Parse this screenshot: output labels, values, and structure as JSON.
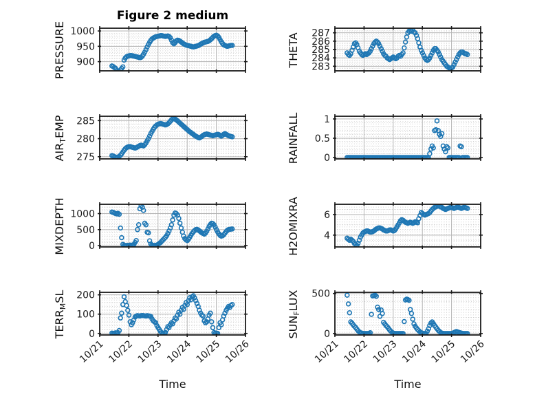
{
  "figure": {
    "title": "Figure 2 medium",
    "xlabel": "Time",
    "background": "#ffffff"
  },
  "chart_data": {
    "type": "scatter",
    "marker": "open-circle",
    "marker_color": "#1f77b4",
    "spine_color": "#1a1a1a",
    "grid": {
      "major_color": "#b3b3b3",
      "minor_color": "#c9c9c9",
      "minor_style": "dotted",
      "grid_on": true
    },
    "x_axis": {
      "label": "Time",
      "tick_labels": [
        "10/21",
        "10/22",
        "10/23",
        "10/24",
        "10/25",
        "10/26"
      ],
      "tick_values": [
        0,
        1,
        2,
        3,
        4,
        5
      ],
      "xlim": [
        0,
        5
      ],
      "minor_step": 0.0833333
    },
    "t0": 0.42,
    "dt": 0.0416667,
    "subplots": [
      {
        "key": "pressure",
        "row": 0,
        "col": 0,
        "ylabel": {
          "pre": "PRESSURE",
          "sub": "",
          "post": ""
        },
        "ylim": [
          870,
          1009
        ],
        "yticks": [
          900,
          950,
          1000
        ],
        "ytick_labels": [
          "900",
          "950",
          "1000"
        ],
        "minor_y": 10,
        "values": [
          886,
          884,
          881,
          878,
          871,
          866,
          868,
          873,
          878,
          883,
          905,
          912,
          916,
          918,
          919,
          920,
          920,
          919,
          918,
          917,
          916,
          915,
          914,
          913,
          914,
          918,
          924,
          931,
          939,
          948,
          956,
          963,
          969,
          974,
          977,
          979,
          981,
          982,
          983,
          984,
          985,
          985,
          984,
          983,
          982,
          983,
          984,
          982,
          978,
          970,
          962,
          958,
          962,
          968,
          970,
          969,
          967,
          964,
          961,
          958,
          956,
          954,
          953,
          952,
          951,
          950,
          949,
          948,
          949,
          950,
          951,
          952,
          954,
          957,
          959,
          961,
          963,
          964,
          965,
          966,
          968,
          971,
          975,
          979,
          983,
          985,
          986,
          984,
          979,
          972,
          965,
          959,
          955,
          953,
          951,
          950,
          951,
          952,
          953,
          953
        ]
      },
      {
        "key": "theta",
        "row": 0,
        "col": 1,
        "ylabel": {
          "pre": "THETA",
          "sub": "",
          "post": ""
        },
        "ylim": [
          282.45,
          287.55
        ],
        "yticks": [
          283,
          284,
          285,
          286,
          287
        ],
        "ytick_labels": [
          "283",
          "284",
          "285",
          "286",
          "287"
        ],
        "minor_y": 0.25,
        "values": [
          284.6,
          284.4,
          284.3,
          284.5,
          284.9,
          285.3,
          285.7,
          285.8,
          285.6,
          285.2,
          284.8,
          284.6,
          284.4,
          284.3,
          284.4,
          284.5,
          284.4,
          284.5,
          284.6,
          284.8,
          285.1,
          285.4,
          285.7,
          285.9,
          286.0,
          285.9,
          285.7,
          285.4,
          285.1,
          284.8,
          284.5,
          284.3,
          284.2,
          284.0,
          283.9,
          283.8,
          283.9,
          284.0,
          284.1,
          284.0,
          283.9,
          284.0,
          284.2,
          284.3,
          284.2,
          284.4,
          284.6,
          285.2,
          285.9,
          286.5,
          287.0,
          287.2,
          287.3,
          287.2,
          287.3,
          287.1,
          287.0,
          286.7,
          286.3,
          285.8,
          285.3,
          284.9,
          284.6,
          284.3,
          284.0,
          283.8,
          283.7,
          283.8,
          284.0,
          284.3,
          284.6,
          284.9,
          285.1,
          285.1,
          284.9,
          284.7,
          284.4,
          284.1,
          283.8,
          283.6,
          283.4,
          283.2,
          283.0,
          282.9,
          282.8,
          282.7,
          282.8,
          282.9,
          283.2,
          283.5,
          283.8,
          284.1,
          284.4,
          284.6,
          284.7,
          284.7,
          284.6,
          284.5,
          284.5,
          284.4
        ]
      },
      {
        "key": "air-temp",
        "row": 1,
        "col": 0,
        "ylabel": {
          "pre": "AIR",
          "sub": "T",
          "post": "EMP"
        },
        "ylim": [
          274.4,
          286.2
        ],
        "yticks": [
          275,
          280,
          285
        ],
        "ytick_labels": [
          "275",
          "280",
          "285"
        ],
        "minor_y": 1,
        "values": [
          275.3,
          275.2,
          275.0,
          274.9,
          274.8,
          274.9,
          275.1,
          275.4,
          275.8,
          276.3,
          276.8,
          277.2,
          277.5,
          277.7,
          277.8,
          277.8,
          277.7,
          277.6,
          277.5,
          277.4,
          277.5,
          277.7,
          277.9,
          278.1,
          278.2,
          278.1,
          278.0,
          278.3,
          278.8,
          279.4,
          280.0,
          280.7,
          281.4,
          282.0,
          282.6,
          283.1,
          283.5,
          283.8,
          284.0,
          284.1,
          284.2,
          284.1,
          284.0,
          283.9,
          283.8,
          283.9,
          284.1,
          284.4,
          284.8,
          285.2,
          285.5,
          285.6,
          285.4,
          285.2,
          284.9,
          284.6,
          284.3,
          284.0,
          283.7,
          283.4,
          283.1,
          282.8,
          282.5,
          282.2,
          281.9,
          281.7,
          281.4,
          281.2,
          280.9,
          280.7,
          280.5,
          280.3,
          280.2,
          280.4,
          280.6,
          280.9,
          281.1,
          281.2,
          281.3,
          281.2,
          281.1,
          281.0,
          280.9,
          280.8,
          280.9,
          281.0,
          281.1,
          281.2,
          281.1,
          280.9,
          280.7,
          280.9,
          281.2,
          281.4,
          281.2,
          281.0,
          280.8,
          280.7,
          280.6,
          280.5
        ]
      },
      {
        "key": "rainfall",
        "row": 1,
        "col": 1,
        "ylabel": {
          "pre": "RAINFALL",
          "sub": "",
          "post": ""
        },
        "ylim": [
          -0.035,
          1.07
        ],
        "yticks": [
          0,
          0.5,
          1
        ],
        "ytick_labels": [
          "0",
          "0.5",
          "1"
        ],
        "minor_y": 0.1,
        "values": [
          0,
          0,
          0,
          0,
          0,
          0,
          0,
          0,
          0,
          0,
          0,
          0,
          0,
          0,
          0,
          0,
          0,
          0,
          0,
          0,
          0,
          0,
          0,
          0,
          0,
          0,
          0,
          0,
          0,
          0,
          0,
          0,
          0,
          0,
          0,
          0,
          0,
          0,
          0,
          0,
          0,
          0,
          0,
          0,
          0,
          0,
          0,
          0,
          0,
          0,
          0,
          0,
          0,
          0,
          0,
          0,
          0,
          0,
          0,
          0,
          0,
          0,
          0,
          0,
          0,
          0,
          0,
          0,
          0.1,
          0.22,
          0.3,
          0.25,
          0.7,
          0.72,
          0.95,
          0.7,
          0.6,
          0.55,
          0.62,
          0.3,
          0.22,
          0.15,
          0.28,
          0.25,
          0,
          0,
          0,
          0,
          0,
          0,
          0,
          0,
          0,
          0.3,
          0.28,
          0,
          0,
          0,
          0,
          0
        ]
      },
      {
        "key": "mixdepth",
        "row": 2,
        "col": 0,
        "ylabel": {
          "pre": "MIXDEPTH",
          "sub": "",
          "post": ""
        },
        "ylim": [
          -40,
          1290
        ],
        "yticks": [
          0,
          500,
          1000
        ],
        "ytick_labels": [
          "0",
          "500",
          "1000"
        ],
        "minor_y": 100,
        "values": [
          1050,
          1040,
          1020,
          1000,
          990,
          1010,
          980,
          550,
          250,
          40,
          10,
          5,
          5,
          10,
          5,
          15,
          10,
          20,
          30,
          100,
          160,
          500,
          650,
          1150,
          1250,
          1200,
          1100,
          700,
          650,
          420,
          400,
          150,
          50,
          15,
          5,
          5,
          10,
          20,
          40,
          70,
          100,
          140,
          180,
          220,
          260,
          310,
          380,
          460,
          550,
          650,
          800,
          950,
          1020,
          1000,
          950,
          850,
          700,
          550,
          420,
          300,
          220,
          180,
          160,
          200,
          260,
          320,
          380,
          430,
          470,
          500,
          510,
          490,
          460,
          430,
          400,
          380,
          360,
          390,
          450,
          520,
          600,
          660,
          700,
          690,
          650,
          580,
          500,
          430,
          370,
          320,
          300,
          310,
          340,
          390,
          440,
          480,
          500,
          510,
          515,
          520
        ]
      },
      {
        "key": "h2omixra",
        "row": 2,
        "col": 1,
        "ylabel": {
          "pre": "H2OMIXRA",
          "sub": "",
          "post": ""
        },
        "ylim": [
          2.85,
          7.0
        ],
        "yticks": [
          4,
          6
        ],
        "ytick_labels": [
          "4",
          "6"
        ],
        "minor_y": 0.5,
        "values": [
          3.7,
          3.6,
          3.5,
          3.6,
          3.5,
          3.4,
          3.2,
          3.1,
          3.0,
          3.2,
          3.5,
          3.8,
          4.0,
          4.2,
          4.3,
          4.35,
          4.4,
          4.4,
          4.35,
          4.3,
          4.3,
          4.35,
          4.4,
          4.5,
          4.6,
          4.65,
          4.7,
          4.7,
          4.65,
          4.6,
          4.5,
          4.45,
          4.4,
          4.4,
          4.45,
          4.5,
          4.5,
          4.45,
          4.4,
          4.45,
          4.6,
          4.8,
          5.0,
          5.2,
          5.4,
          5.5,
          5.45,
          5.35,
          5.25,
          5.2,
          5.15,
          5.2,
          5.25,
          5.2,
          5.15,
          5.2,
          5.3,
          5.25,
          5.2,
          5.6,
          5.9,
          6.2,
          6.1,
          6.0,
          5.95,
          6.0,
          6.05,
          6.1,
          6.2,
          6.35,
          6.5,
          6.6,
          6.7,
          6.75,
          6.8,
          6.85,
          6.8,
          6.75,
          6.7,
          6.6,
          6.55,
          6.5,
          6.55,
          6.6,
          6.65,
          6.7,
          6.7,
          6.65,
          6.6,
          6.65,
          6.7,
          6.75,
          6.7,
          6.65,
          6.6,
          6.65,
          6.7,
          6.7,
          6.65,
          6.6
        ]
      },
      {
        "key": "terr-msl",
        "row": 3,
        "col": 0,
        "ylabel": {
          "pre": "TERR",
          "sub": "M",
          "post": "SL"
        },
        "ylim": [
          -8,
          213
        ],
        "yticks": [
          0,
          100,
          200
        ],
        "ytick_labels": [
          "0",
          "100",
          "200"
        ],
        "minor_y": 20,
        "values": [
          2,
          0,
          1,
          3,
          2,
          4,
          15,
          80,
          105,
          150,
          190,
          165,
          145,
          120,
          95,
          60,
          45,
          55,
          70,
          85,
          90,
          92,
          91,
          90,
          92,
          93,
          92,
          91,
          90,
          92,
          91,
          90,
          88,
          75,
          65,
          60,
          55,
          40,
          30,
          20,
          10,
          3,
          0,
          2,
          5,
          20,
          35,
          30,
          45,
          55,
          50,
          65,
          80,
          75,
          95,
          110,
          100,
          120,
          135,
          125,
          145,
          160,
          150,
          170,
          185,
          175,
          190,
          195,
          185,
          170,
          155,
          140,
          120,
          105,
          95,
          90,
          65,
          55,
          60,
          75,
          95,
          105,
          60,
          30,
          5,
          0,
          2,
          0,
          30,
          55,
          45,
          70,
          90,
          105,
          120,
          130,
          140,
          135,
          145,
          150
        ]
      },
      {
        "key": "sun-flux",
        "row": 3,
        "col": 1,
        "ylabel": {
          "pre": "SUN",
          "sub": "F",
          "post": "LUX"
        },
        "ylim": [
          -18,
          515
        ],
        "yticks": [
          0,
          500
        ],
        "ytick_labels": [
          "0",
          "500"
        ],
        "minor_y": 100,
        "values": [
          480,
          370,
          260,
          145,
          130,
          110,
          90,
          75,
          55,
          35,
          20,
          10,
          5,
          2,
          0,
          0,
          0,
          0,
          0,
          10,
          240,
          470,
          475,
          480,
          465,
          330,
          300,
          215,
          295,
          250,
          140,
          120,
          100,
          85,
          65,
          45,
          28,
          15,
          5,
          2,
          0,
          0,
          0,
          0,
          0,
          0,
          0,
          150,
          420,
          430,
          425,
          415,
          300,
          250,
          180,
          120,
          90,
          70,
          50,
          35,
          20,
          10,
          4,
          0,
          0,
          0,
          30,
          60,
          100,
          130,
          145,
          125,
          100,
          80,
          60,
          40,
          25,
          12,
          5,
          2,
          0,
          0,
          0,
          0,
          0,
          0,
          0,
          5,
          12,
          20,
          25,
          20,
          15,
          10,
          5,
          2,
          0,
          0,
          0,
          0
        ]
      }
    ]
  }
}
